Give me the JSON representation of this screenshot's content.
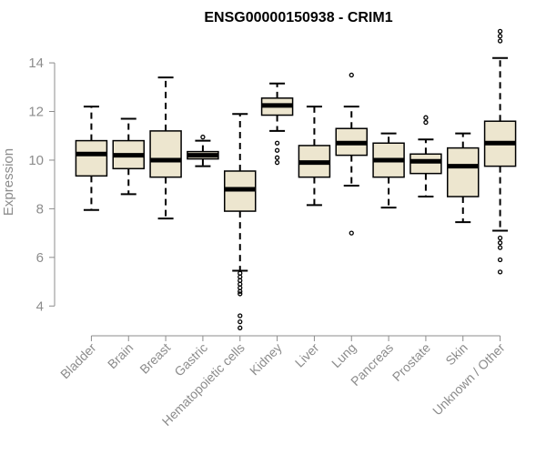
{
  "chart_data": {
    "type": "boxplot",
    "title": "ENSG00000150938 - CRIM1",
    "xlabel": "",
    "ylabel": "Expression",
    "ylim": [
      3,
      15.5
    ],
    "yticks": [
      4,
      6,
      8,
      10,
      12,
      14
    ],
    "colors": {
      "box_fill": "#ede6cf",
      "stroke": "#000000",
      "axis": "#8c8c8c"
    },
    "categories": [
      "Bladder",
      "Brain",
      "Breast",
      "Gastric",
      "Hematopoietic cells",
      "Kidney",
      "Liver",
      "Lung",
      "Pancreas",
      "Prostate",
      "Skin",
      "Unknown / Other"
    ],
    "boxes": [
      {
        "name": "Bladder",
        "whisker_low": 7.95,
        "q1": 9.35,
        "median": 10.25,
        "q3": 10.8,
        "whisker_high": 12.2,
        "outliers": []
      },
      {
        "name": "Brain",
        "whisker_low": 8.6,
        "q1": 9.65,
        "median": 10.2,
        "q3": 10.8,
        "whisker_high": 11.7,
        "outliers": []
      },
      {
        "name": "Breast",
        "whisker_low": 7.6,
        "q1": 9.3,
        "median": 10.0,
        "q3": 11.2,
        "whisker_high": 13.4,
        "outliers": []
      },
      {
        "name": "Gastric",
        "whisker_low": 9.75,
        "q1": 10.05,
        "median": 10.2,
        "q3": 10.35,
        "whisker_high": 10.8,
        "outliers": [
          10.95
        ]
      },
      {
        "name": "Hematopoietic cells",
        "whisker_low": 5.45,
        "q1": 7.9,
        "median": 8.8,
        "q3": 9.55,
        "whisker_high": 11.9,
        "outliers": [
          5.35,
          5.2,
          5.05,
          4.9,
          4.75,
          4.6,
          4.5,
          3.6,
          3.35,
          3.1
        ]
      },
      {
        "name": "Kidney",
        "whisker_low": 11.2,
        "q1": 11.85,
        "median": 12.25,
        "q3": 12.55,
        "whisker_high": 13.15,
        "outliers": [
          10.7,
          10.4,
          10.1,
          9.9
        ]
      },
      {
        "name": "Liver",
        "whisker_low": 8.15,
        "q1": 9.3,
        "median": 9.9,
        "q3": 10.6,
        "whisker_high": 12.2,
        "outliers": []
      },
      {
        "name": "Lung",
        "whisker_low": 8.95,
        "q1": 10.2,
        "median": 10.7,
        "q3": 11.3,
        "whisker_high": 12.2,
        "outliers": [
          13.5,
          7.0
        ]
      },
      {
        "name": "Pancreas",
        "whisker_low": 8.05,
        "q1": 9.3,
        "median": 10.0,
        "q3": 10.7,
        "whisker_high": 11.1,
        "outliers": []
      },
      {
        "name": "Prostate",
        "whisker_low": 8.5,
        "q1": 9.45,
        "median": 9.95,
        "q3": 10.25,
        "whisker_high": 10.85,
        "outliers": [
          11.75,
          11.55
        ]
      },
      {
        "name": "Skin",
        "whisker_low": 7.45,
        "q1": 8.5,
        "median": 9.75,
        "q3": 10.5,
        "whisker_high": 11.1,
        "outliers": []
      },
      {
        "name": "Unknown / Other",
        "whisker_low": 7.1,
        "q1": 9.75,
        "median": 10.7,
        "q3": 11.6,
        "whisker_high": 14.2,
        "outliers": [
          15.3,
          15.1,
          14.9,
          6.8,
          6.6,
          6.4,
          5.9,
          5.4
        ]
      }
    ]
  }
}
